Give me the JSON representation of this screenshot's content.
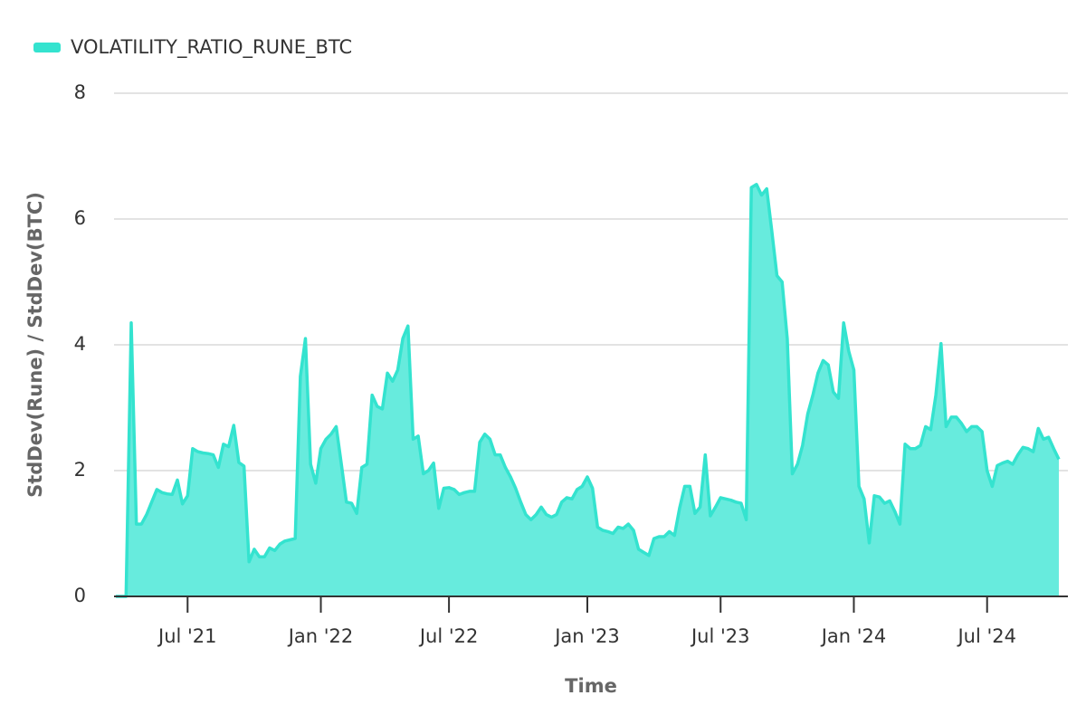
{
  "chart_data": {
    "type": "area",
    "xlabel": "Time",
    "ylabel": "StdDev(Rune) / StdDev(BTC)",
    "categories": [
      null,
      null,
      null,
      null,
      null,
      null,
      null,
      null,
      null,
      null,
      null,
      null,
      null,
      null,
      "Jul '21",
      null,
      null,
      null,
      null,
      null,
      null,
      null,
      null,
      null,
      null,
      null,
      null,
      null,
      null,
      null,
      null,
      null,
      null,
      null,
      null,
      null,
      null,
      null,
      null,
      null,
      "Jan '22",
      null,
      null,
      null,
      null,
      null,
      null,
      null,
      null,
      null,
      null,
      null,
      null,
      null,
      null,
      null,
      null,
      null,
      null,
      null,
      null,
      null,
      null,
      null,
      null,
      "Jul '22",
      null,
      null,
      null,
      null,
      null,
      null,
      null,
      null,
      null,
      null,
      null,
      null,
      null,
      null,
      null,
      null,
      null,
      null,
      null,
      null,
      null,
      null,
      null,
      null,
      null,
      null,
      "Jan '23",
      null,
      null,
      null,
      null,
      null,
      null,
      null,
      null,
      null,
      null,
      null,
      null,
      null,
      null,
      null,
      null,
      null,
      null,
      null,
      null,
      null,
      null,
      null,
      null,
      null,
      "Jul '23",
      null,
      null,
      null,
      null,
      null,
      null,
      null,
      null,
      null,
      null,
      null,
      null,
      null,
      null,
      null,
      null,
      null,
      null,
      null,
      null,
      null,
      null,
      null,
      null,
      null,
      "Jan '24",
      null,
      null,
      null,
      null,
      null,
      null,
      null,
      null,
      null,
      null,
      null,
      null,
      null,
      null,
      null,
      null,
      null,
      null,
      null,
      null,
      null,
      null,
      null,
      null,
      null,
      "Jul '24",
      null,
      null,
      null,
      null,
      null,
      null,
      null,
      null,
      null,
      null,
      null,
      null,
      null,
      null
    ],
    "series": [
      {
        "name": "VOLATILITY_RATIO_RUNE_BTC",
        "color": "#34e3cf",
        "fill": "#67ebdd",
        "values": [
          0,
          0,
          0,
          4.35,
          1.15,
          1.15,
          1.3,
          1.5,
          1.7,
          1.65,
          1.63,
          1.62,
          1.85,
          1.47,
          1.6,
          2.35,
          2.3,
          2.28,
          2.27,
          2.25,
          2.05,
          2.42,
          2.38,
          2.72,
          2.13,
          2.07,
          0.55,
          0.75,
          0.63,
          0.63,
          0.77,
          0.73,
          0.83,
          0.88,
          0.9,
          0.92,
          3.5,
          4.1,
          2.1,
          1.8,
          2.35,
          2.5,
          2.58,
          2.7,
          2.1,
          1.5,
          1.48,
          1.32,
          2.05,
          2.1,
          3.2,
          3.02,
          2.98,
          3.55,
          3.42,
          3.6,
          4.1,
          4.3,
          2.5,
          2.55,
          1.95,
          2.0,
          2.12,
          1.4,
          1.72,
          1.73,
          1.7,
          1.62,
          1.65,
          1.67,
          1.67,
          2.45,
          2.58,
          2.5,
          2.25,
          2.25,
          2.05,
          1.9,
          1.72,
          1.5,
          1.3,
          1.22,
          1.3,
          1.42,
          1.3,
          1.26,
          1.3,
          1.5,
          1.57,
          1.55,
          1.7,
          1.75,
          1.9,
          1.72,
          1.1,
          1.05,
          1.03,
          1.0,
          1.1,
          1.08,
          1.15,
          1.05,
          0.75,
          0.7,
          0.65,
          0.92,
          0.95,
          0.95,
          1.03,
          0.97,
          1.4,
          1.75,
          1.75,
          1.32,
          1.42,
          2.25,
          1.28,
          1.42,
          1.57,
          1.55,
          1.53,
          1.5,
          1.48,
          1.22,
          6.5,
          6.55,
          6.38,
          6.48,
          5.8,
          5.1,
          5.0,
          4.1,
          1.95,
          2.1,
          2.4,
          2.9,
          3.2,
          3.55,
          3.75,
          3.68,
          3.25,
          3.15,
          4.35,
          3.9,
          3.6,
          1.75,
          1.55,
          0.85,
          1.6,
          1.58,
          1.48,
          1.52,
          1.35,
          1.15,
          2.42,
          2.35,
          2.35,
          2.4,
          2.7,
          2.65,
          3.2,
          4.02,
          2.7,
          2.85,
          2.85,
          2.75,
          2.62,
          2.7,
          2.7,
          2.62,
          2.0,
          1.75,
          2.08,
          2.12,
          2.15,
          2.1,
          2.25,
          2.37,
          2.35,
          2.3,
          2.67,
          2.5,
          2.53,
          2.35,
          2.18
        ]
      }
    ],
    "ylim": [
      0,
      8
    ],
    "yticks": [
      0,
      2,
      4,
      6,
      8
    ],
    "grid": true,
    "legend": "top-left"
  }
}
